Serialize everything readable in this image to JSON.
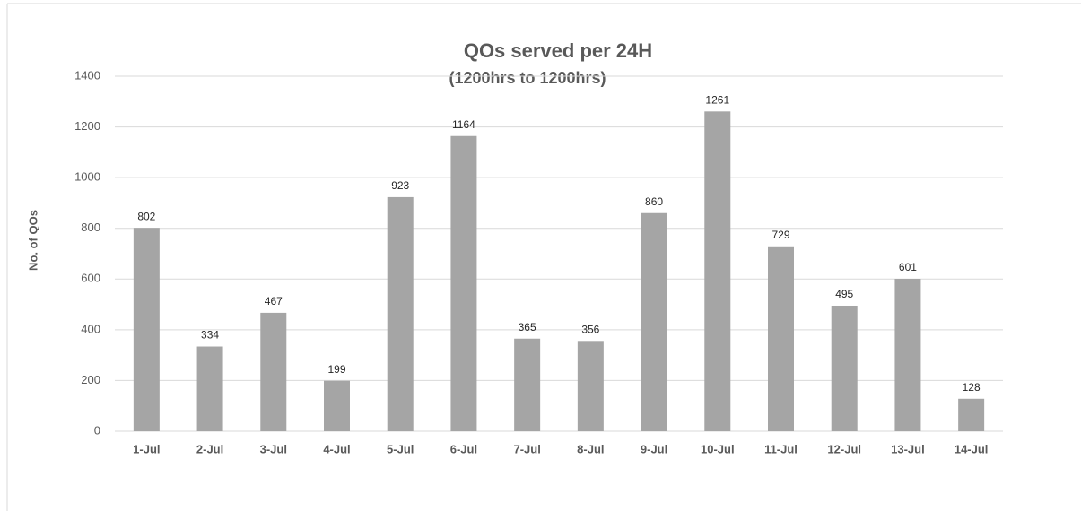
{
  "chart_data": {
    "type": "bar",
    "title": "QOs served per 24H",
    "subtitle": "(1200hrs to 1200hrs)",
    "y_label": "No. of QOs",
    "categories": [
      "1-Jul",
      "2-Jul",
      "3-Jul",
      "4-Jul",
      "5-Jul",
      "6-Jul",
      "7-Jul",
      "8-Jul",
      "9-Jul",
      "10-Jul",
      "11-Jul",
      "12-Jul",
      "13-Jul",
      "14-Jul"
    ],
    "values": [
      802,
      334,
      467,
      199,
      923,
      1164,
      365,
      356,
      860,
      1261,
      729,
      495,
      601,
      128
    ],
    "color": "#a5a5a5",
    "ylim": [
      0,
      1400
    ],
    "yticks": [
      0,
      200,
      400,
      600,
      800,
      1000,
      1200,
      1400
    ],
    "grid": true,
    "data_labels": true
  }
}
